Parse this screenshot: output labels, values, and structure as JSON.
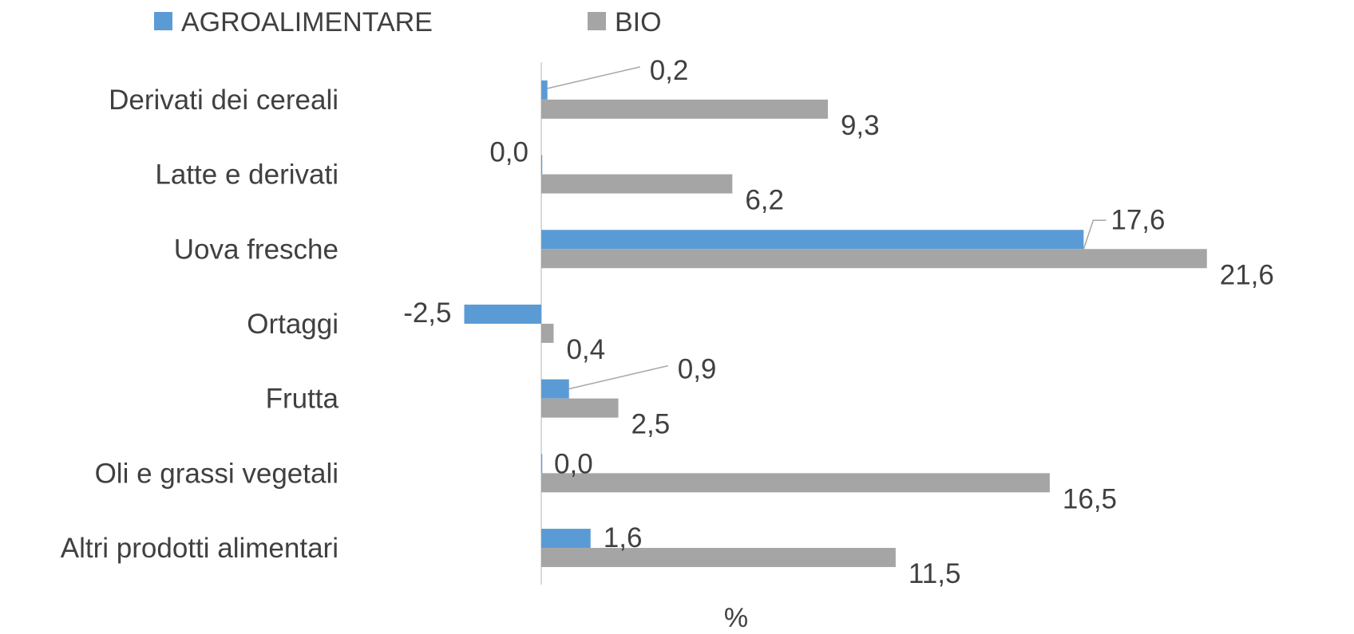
{
  "chart_data": {
    "type": "bar",
    "orientation": "horizontal",
    "categories": [
      "Derivati dei cereali",
      "Latte e derivati",
      "Uova fresche",
      "Ortaggi",
      "Frutta",
      "Oli e grassi vegetali",
      "Altri prodotti alimentari"
    ],
    "series": [
      {
        "name": "AGROALIMENTARE",
        "color": "#5b9bd5",
        "values": [
          0.2,
          0.0,
          17.6,
          -2.5,
          0.9,
          0.0,
          1.6
        ],
        "labels": [
          "0,2",
          "0,0",
          "17,6",
          "-2,5",
          "0,9",
          "0,0",
          "1,6"
        ]
      },
      {
        "name": "BIO",
        "color": "#a5a5a5",
        "values": [
          9.3,
          6.2,
          21.6,
          0.4,
          2.5,
          16.5,
          11.5
        ],
        "labels": [
          "9,3",
          "6,2",
          "21,6",
          "0,4",
          "2,5",
          "16,5",
          "11,5"
        ]
      }
    ],
    "xlabel": "%",
    "xlim": [
      -2.5,
      21.6
    ],
    "legend": "top",
    "grid": false
  }
}
